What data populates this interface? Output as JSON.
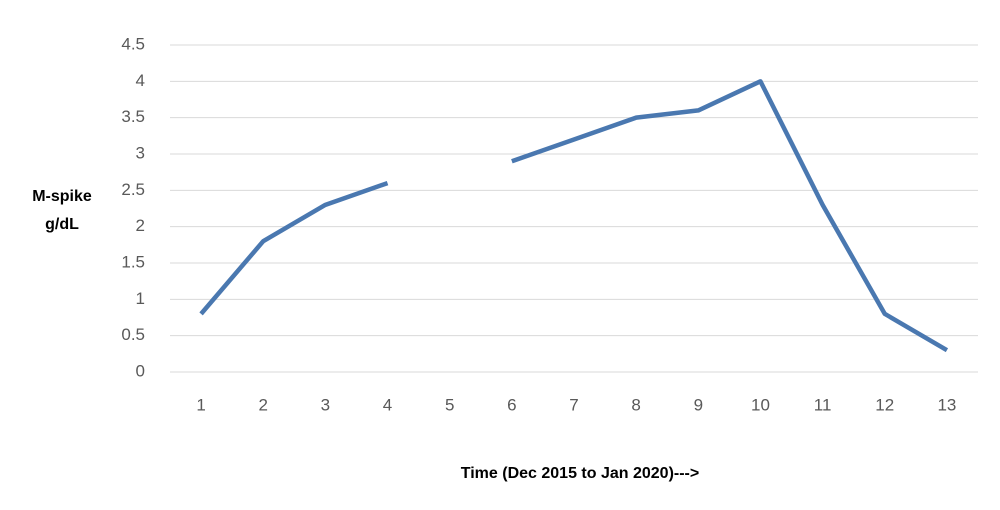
{
  "chart_data": {
    "type": "line",
    "ylabel": [
      "M-spike",
      "g/dL"
    ],
    "xlabel": "Time (Dec 2015 to  Jan 2020)--->",
    "categories": [
      "1",
      "2",
      "3",
      "4",
      "5",
      "6",
      "7",
      "8",
      "9",
      "10",
      "11",
      "12",
      "13"
    ],
    "series": [
      {
        "color": "#4a78b0",
        "values": [
          0.8,
          1.8,
          2.3,
          2.6,
          null,
          2.9,
          3.2,
          3.5,
          3.6,
          4.0,
          2.3,
          0.8,
          0.3
        ]
      }
    ],
    "ylim": [
      0,
      4.5
    ],
    "yticks": [
      0,
      0.5,
      1,
      1.5,
      2,
      2.5,
      3,
      3.5,
      4,
      4.5
    ],
    "grid": true
  }
}
